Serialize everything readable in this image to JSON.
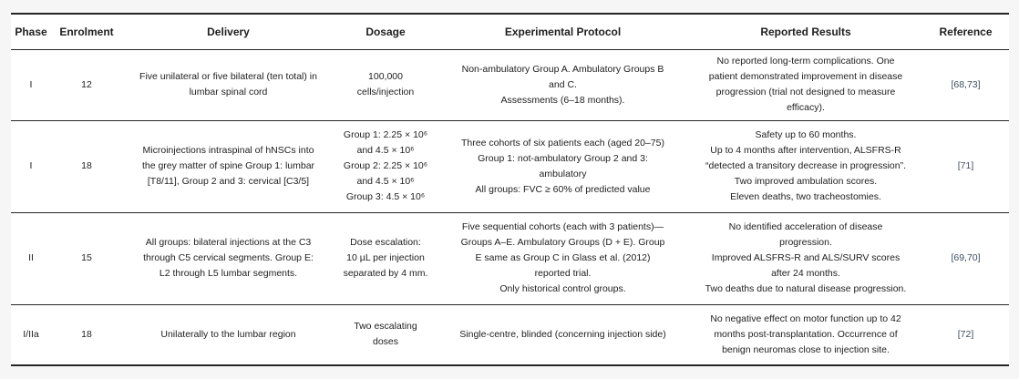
{
  "colors": {
    "page_background": "#f6f6f6",
    "cell_background": "#ffffff",
    "rule_color": "#262626",
    "body_text": "#212121",
    "reference_link": "#3d4e63"
  },
  "table": {
    "columns": [
      {
        "label": "Phase"
      },
      {
        "label": "Enrolment"
      },
      {
        "label": "Delivery"
      },
      {
        "label": "Dosage"
      },
      {
        "label": "Experimental Protocol"
      },
      {
        "label": "Reported Results"
      },
      {
        "label": "Reference"
      }
    ],
    "rows": [
      {
        "phase": "I",
        "enrolment": "12",
        "delivery": "Five unilateral or five bilateral (ten total) in\nlumbar spinal cord",
        "dosage": "100,000\ncells/injection",
        "protocol": "Non-ambulatory Group A. Ambulatory Groups B\nand C.\nAssessments (6–18 months).",
        "results": "No reported long-term complications. One\npatient demonstrated improvement in disease\nprogression (trial not designed to measure\nefficacy).",
        "reference": "[68,73]"
      },
      {
        "phase": "I",
        "enrolment": "18",
        "delivery": "Microinjections intraspinal of hNSCs into\nthe grey matter of spine Group 1: lumbar\n[T8/11], Group 2 and 3: cervical [C3/5]",
        "dosage": "Group 1: 2.25 × 10⁶\nand 4.5 × 10⁶\nGroup 2: 2.25 × 10⁶\nand 4.5 × 10⁶\nGroup 3: 4.5 × 10⁶",
        "protocol": "Three cohorts of six patients each (aged 20–75)\nGroup 1: not-ambulatory Group 2 and 3:\nambulatory\nAll groups: FVC ≥ 60% of predicted value",
        "results": "Safety up to 60 months.\nUp to 4 months after intervention, ALSFRS-R\n“detected a transitory decrease in progression”.\nTwo improved ambulation scores.\nEleven deaths, two tracheostomies.",
        "reference": "[71]"
      },
      {
        "phase": "II",
        "enrolment": "15",
        "delivery": "All groups: bilateral injections at the C3\nthrough C5 cervical segments. Group E:\nL2 through L5 lumbar segments.",
        "dosage": "Dose escalation:\n10 µL per injection\nseparated by 4 mm.",
        "protocol": "Five sequential cohorts (each with 3 patients)—\nGroups A–E. Ambulatory Groups (D + E). Group\nE same as Group C in Glass et al. (2012)\nreported trial.\nOnly historical control groups.",
        "results": "No identified acceleration of disease\nprogression.\nImproved ALSFRS-R and ALS/SURV scores\nafter 24 months.\nTwo deaths due to natural disease progression.",
        "reference": "[69,70]"
      },
      {
        "phase": "I/IIa",
        "enrolment": "18",
        "delivery": "Unilaterally to the lumbar region",
        "dosage": "Two escalating\ndoses",
        "protocol": "Single-centre, blinded (concerning injection side)",
        "results": "No negative effect on motor function up to 42\nmonths post-transplantation. Occurrence of\nbenign neuromas close to injection site.",
        "reference": "[72]"
      }
    ]
  }
}
